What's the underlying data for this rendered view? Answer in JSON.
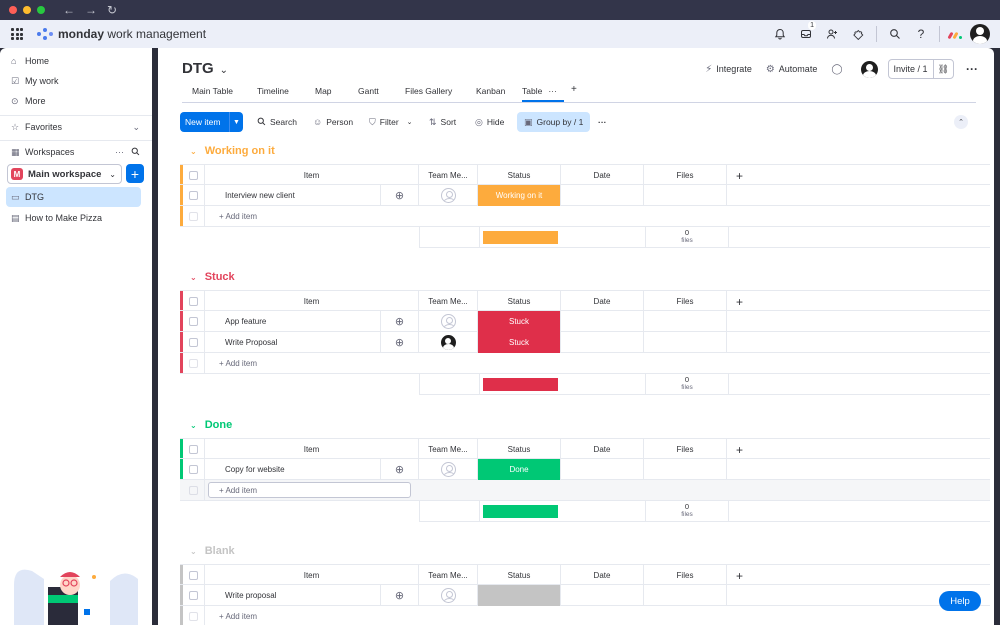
{
  "app": {
    "brand_bold": "monday",
    "brand_rest": " work management",
    "notification_badge": "1"
  },
  "sidebar": {
    "home": "Home",
    "my_work": "My work",
    "more": "More",
    "favorites": "Favorites",
    "workspaces": "Workspaces",
    "workspace_name": "Main workspace",
    "workspace_initial": "M",
    "boards": [
      "DTG",
      "How to Make Pizza"
    ]
  },
  "board": {
    "title": "DTG",
    "actions": {
      "integrate": "Integrate",
      "automate": "Automate",
      "invite": "Invite / 1"
    },
    "tabs": [
      "Main Table",
      "Timeline",
      "Map",
      "Gantt",
      "Files Gallery",
      "Kanban",
      "Table"
    ],
    "toolbar": {
      "new_item": "New item",
      "search": "Search",
      "person": "Person",
      "filter": "Filter",
      "sort": "Sort",
      "hide": "Hide",
      "group_by": "Group by / 1"
    },
    "columns": {
      "item": "Item",
      "team": "Team Me...",
      "status": "Status",
      "date": "Date",
      "files": "Files"
    },
    "add_item": "+ Add item",
    "files_zero": "0",
    "files_word": "files"
  },
  "groups": [
    {
      "name": "Working on it",
      "color": "#fdab3d",
      "items": [
        {
          "name": "Interview new client",
          "status": "Working on it",
          "status_color": "#fdab3d",
          "person": "empty"
        }
      ],
      "summary_color": "#fdab3d"
    },
    {
      "name": "Stuck",
      "color": "#e2445c",
      "items": [
        {
          "name": "App feature",
          "status": "Stuck",
          "status_color": "#df2f4a",
          "person": "empty"
        },
        {
          "name": "Write Proposal",
          "status": "Stuck",
          "status_color": "#df2f4a",
          "person": "filled"
        }
      ],
      "summary_color": "#df2f4a"
    },
    {
      "name": "Done",
      "color": "#00c875",
      "items": [
        {
          "name": "Copy for website",
          "status": "Done",
          "status_color": "#00c875",
          "person": "empty"
        }
      ],
      "summary_color": "#00c875"
    },
    {
      "name": "Blank",
      "color": "#c4c4c4",
      "items": [
        {
          "name": "Write proposal",
          "status": "",
          "status_color": "#c4c4c4",
          "person": "empty"
        }
      ],
      "summary_color": "#c4c4c4"
    }
  ],
  "help": "Help"
}
